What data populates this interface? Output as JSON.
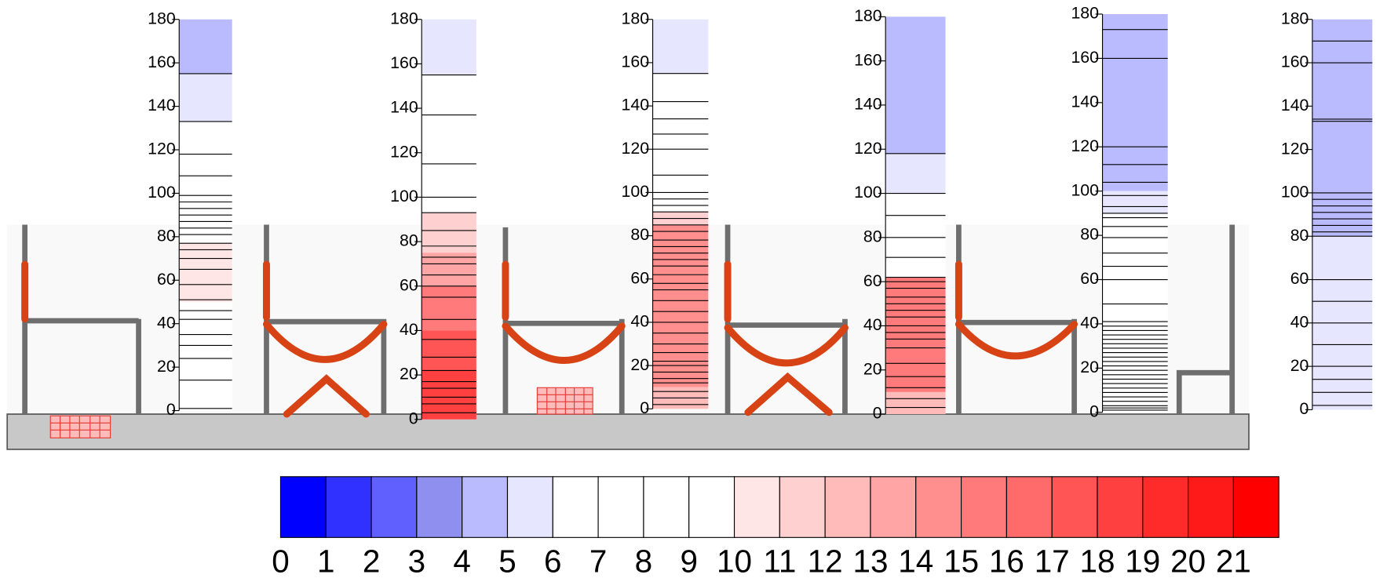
{
  "columns": [
    {
      "ylim": [
        0,
        180
      ],
      "yticks": [
        0,
        20,
        40,
        60,
        80,
        100,
        120,
        140,
        160,
        180
      ],
      "bands": [
        {
          "from": 155,
          "to": 180,
          "level": 4
        },
        {
          "from": 133,
          "to": 155,
          "level": 5
        },
        {
          "from": 50,
          "to": 77,
          "level": 10
        }
      ],
      "lines": [
        1,
        14,
        24,
        30,
        35,
        42,
        46,
        51,
        58,
        65,
        70,
        74,
        77,
        81,
        84,
        87,
        90,
        93,
        96,
        99,
        108,
        118,
        133,
        155
      ]
    },
    {
      "ylim": [
        0,
        180
      ],
      "yticks": [
        0,
        20,
        40,
        60,
        80,
        100,
        120,
        140,
        160,
        180
      ],
      "bands": [
        {
          "from": 155,
          "to": 180,
          "level": 5
        },
        {
          "from": 75,
          "to": 93,
          "level": 11
        },
        {
          "from": 60,
          "to": 75,
          "level": 13
        },
        {
          "from": 40,
          "to": 60,
          "level": 15
        },
        {
          "from": 22,
          "to": 40,
          "level": 17
        },
        {
          "from": 0,
          "to": 22,
          "level": 18
        }
      ],
      "lines": [
        3,
        7,
        10,
        14,
        17,
        22,
        28,
        36,
        45,
        55,
        60,
        65,
        70,
        73,
        78,
        85,
        93,
        100,
        115,
        137,
        155
      ]
    },
    {
      "ylim": [
        0,
        180
      ],
      "yticks": [
        0,
        20,
        40,
        60,
        80,
        100,
        120,
        140,
        160,
        180
      ],
      "bands": [
        {
          "from": 155,
          "to": 180,
          "level": 5
        },
        {
          "from": 85,
          "to": 91,
          "level": 11
        },
        {
          "from": 10,
          "to": 85,
          "level": 14
        },
        {
          "from": 0,
          "to": 10,
          "level": 12
        }
      ],
      "lines": [
        2,
        5,
        8,
        12,
        14,
        17,
        20,
        22,
        26,
        30,
        35,
        40,
        45,
        50,
        55,
        58,
        62,
        66,
        69,
        72,
        75,
        78,
        82,
        85,
        88,
        91,
        94,
        97,
        100,
        108,
        120,
        127,
        134,
        142,
        155
      ]
    },
    {
      "ylim": [
        0,
        180
      ],
      "yticks": [
        0,
        20,
        40,
        60,
        80,
        100,
        120,
        140,
        160,
        180
      ],
      "bands": [
        {
          "from": 118,
          "to": 180,
          "level": 4
        },
        {
          "from": 100,
          "to": 118,
          "level": 5
        },
        {
          "from": 10,
          "to": 62,
          "level": 15
        },
        {
          "from": 0,
          "to": 10,
          "level": 12
        }
      ],
      "lines": [
        3,
        7,
        12,
        17,
        23,
        30,
        34,
        37,
        40,
        44,
        47,
        50,
        53,
        57,
        60,
        62,
        71,
        80,
        90,
        100,
        118
      ]
    },
    {
      "ylim": [
        0,
        180
      ],
      "yticks": [
        0,
        20,
        40,
        60,
        80,
        100,
        120,
        140,
        160,
        180
      ],
      "bands": [
        {
          "from": 100,
          "to": 180,
          "level": 4
        },
        {
          "from": 90,
          "to": 100,
          "level": 5
        }
      ],
      "lines": [
        1,
        2,
        3,
        5,
        7,
        9,
        11,
        13,
        15,
        17,
        19,
        21,
        23,
        25,
        27,
        29,
        31,
        33,
        35,
        37,
        39,
        41,
        49,
        60,
        66,
        72,
        79,
        84,
        88,
        90,
        93,
        98,
        104,
        112,
        120,
        160,
        173
      ]
    },
    {
      "ylim": [
        0,
        180
      ],
      "yticks": [
        0,
        20,
        40,
        60,
        80,
        100,
        120,
        140,
        160,
        180
      ],
      "bands": [
        {
          "from": 80,
          "to": 180,
          "level": 4
        },
        {
          "from": 0,
          "to": 80,
          "level": 5
        }
      ],
      "lines": [
        2,
        8,
        14,
        20,
        30,
        40,
        50,
        60,
        80,
        82,
        85,
        88,
        91,
        94,
        97,
        100,
        133,
        134,
        160,
        170
      ]
    }
  ],
  "colorbar": {
    "labels": [
      0,
      1,
      2,
      3,
      4,
      5,
      6,
      7,
      8,
      9,
      10,
      11,
      12,
      13,
      14,
      15,
      16,
      17,
      18,
      19,
      20,
      21
    ],
    "colors": [
      "#0000ff",
      "#3030ff",
      "#6060ff",
      "#8f8ff0",
      "#babaff",
      "#e6e6ff",
      "#ffffff",
      "#ffffff",
      "#ffffff",
      "#ffffff",
      "#ffe6e6",
      "#ffd0d0",
      "#ffbaba",
      "#ffa5a5",
      "#ff8f8f",
      "#ff7a7a",
      "#ff6a6a",
      "#ff5555",
      "#ff4040",
      "#ff2b2b",
      "#ff1a1a",
      "#ff0000"
    ]
  }
}
